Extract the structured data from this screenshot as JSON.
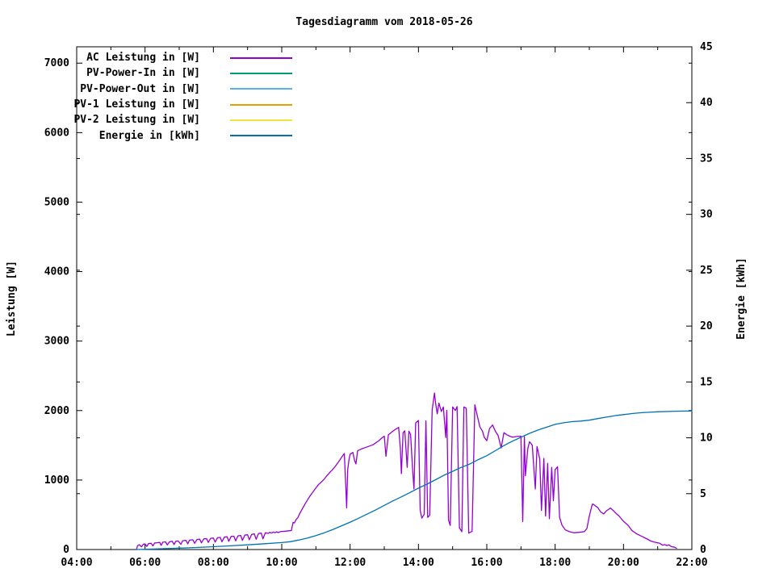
{
  "page": {
    "title": "Tagesdiagramm vom 2018-05-26"
  },
  "chart_data": {
    "type": "line",
    "title": "Tagesdiagramm vom 2018-05-26",
    "background_color": "#ffffff",
    "grid": false,
    "legend_position": "top-left-inside",
    "x_axis": {
      "unit": "time",
      "min_hour": 4,
      "max_hour": 22,
      "major_tick_hours": 2,
      "minor_tick_hours": 1,
      "tick_labels": [
        "04:00",
        "06:00",
        "08:00",
        "10:00",
        "12:00",
        "14:00",
        "16:00",
        "18:00",
        "20:00",
        "22:00"
      ]
    },
    "left_axis": {
      "label": "Leistung [W]",
      "min": 0,
      "max": 7235,
      "tick_step": 1000,
      "tick_labels": [
        "0",
        "1000",
        "2000",
        "3000",
        "4000",
        "5000",
        "6000",
        "7000"
      ]
    },
    "right_axis": {
      "label": "Energie [kWh]",
      "min": 0,
      "max": 45,
      "tick_step": 5,
      "tick_labels": [
        "0",
        "5",
        "10",
        "15",
        "20",
        "25",
        "30",
        "35",
        "40",
        "45"
      ]
    },
    "legend": [
      {
        "label": "AC Leistung in [W]",
        "color": "#9400D3"
      },
      {
        "label": "PV-Power-In in [W]",
        "color": "#009E73"
      },
      {
        "label": "PV-Power-Out in [W]",
        "color": "#56B4E9"
      },
      {
        "label": "PV-1 Leistung in [W]",
        "color": "#E69F00"
      },
      {
        "label": "PV-2 Leistung in [W]",
        "color": "#F0E442"
      },
      {
        "label": "Energie in [kWh]",
        "color": "#0072B2"
      }
    ],
    "series": [
      {
        "name": "AC Leistung in [W]",
        "color": "#9400D3",
        "axis": "left",
        "unit": "W",
        "points": [
          [
            5.75,
            0
          ],
          [
            5.78,
            55
          ],
          [
            5.83,
            70
          ],
          [
            5.9,
            40
          ],
          [
            5.95,
            78
          ],
          [
            6.0,
            80
          ],
          [
            6.05,
            45
          ],
          [
            6.1,
            85
          ],
          [
            6.18,
            90
          ],
          [
            6.23,
            52
          ],
          [
            6.28,
            94
          ],
          [
            6.35,
            97
          ],
          [
            6.43,
            102
          ],
          [
            6.47,
            60
          ],
          [
            6.52,
            106
          ],
          [
            6.6,
            110
          ],
          [
            6.65,
            66
          ],
          [
            6.72,
            113
          ],
          [
            6.8,
            117
          ],
          [
            6.85,
            72
          ],
          [
            6.9,
            120
          ],
          [
            6.97,
            123
          ],
          [
            7.05,
            76
          ],
          [
            7.1,
            127
          ],
          [
            7.2,
            131
          ],
          [
            7.25,
            83
          ],
          [
            7.3,
            135
          ],
          [
            7.4,
            140
          ],
          [
            7.45,
            90
          ],
          [
            7.52,
            144
          ],
          [
            7.6,
            149
          ],
          [
            7.65,
            96
          ],
          [
            7.72,
            153
          ],
          [
            7.8,
            157
          ],
          [
            7.85,
            102
          ],
          [
            7.92,
            161
          ],
          [
            8.0,
            165
          ],
          [
            8.05,
            107
          ],
          [
            8.12,
            169
          ],
          [
            8.2,
            174
          ],
          [
            8.25,
            112
          ],
          [
            8.32,
            178
          ],
          [
            8.4,
            183
          ],
          [
            8.45,
            119
          ],
          [
            8.52,
            188
          ],
          [
            8.6,
            192
          ],
          [
            8.65,
            126
          ],
          [
            8.72,
            197
          ],
          [
            8.8,
            202
          ],
          [
            8.85,
            132
          ],
          [
            8.92,
            207
          ],
          [
            9.0,
            212
          ],
          [
            9.05,
            140
          ],
          [
            9.12,
            217
          ],
          [
            9.2,
            224
          ],
          [
            9.25,
            147
          ],
          [
            9.32,
            230
          ],
          [
            9.4,
            236
          ],
          [
            9.45,
            154
          ],
          [
            9.52,
            242
          ],
          [
            9.6,
            232
          ],
          [
            9.65,
            247
          ],
          [
            9.7,
            237
          ],
          [
            9.75,
            251
          ],
          [
            9.8,
            241
          ],
          [
            9.85,
            254
          ],
          [
            9.9,
            244
          ],
          [
            9.95,
            257
          ],
          [
            10.0,
            260
          ],
          [
            10.1,
            264
          ],
          [
            10.2,
            269
          ],
          [
            10.28,
            273
          ],
          [
            10.33,
            390
          ],
          [
            10.37,
            382
          ],
          [
            10.42,
            432
          ],
          [
            10.47,
            457
          ],
          [
            10.53,
            522
          ],
          [
            10.58,
            567
          ],
          [
            10.67,
            647
          ],
          [
            10.75,
            712
          ],
          [
            10.83,
            772
          ],
          [
            10.92,
            832
          ],
          [
            11.0,
            887
          ],
          [
            11.08,
            937
          ],
          [
            11.17,
            977
          ],
          [
            11.25,
            1017
          ],
          [
            11.33,
            1067
          ],
          [
            11.42,
            1117
          ],
          [
            11.5,
            1157
          ],
          [
            11.58,
            1207
          ],
          [
            11.67,
            1267
          ],
          [
            11.75,
            1327
          ],
          [
            11.8,
            1362
          ],
          [
            11.83,
            1382
          ],
          [
            11.87,
            950
          ],
          [
            11.9,
            600
          ],
          [
            11.93,
            1150
          ],
          [
            11.97,
            1300
          ],
          [
            12.0,
            1372
          ],
          [
            12.08,
            1397
          ],
          [
            12.13,
            1282
          ],
          [
            12.17,
            1232
          ],
          [
            12.22,
            1422
          ],
          [
            12.33,
            1447
          ],
          [
            12.5,
            1477
          ],
          [
            12.67,
            1507
          ],
          [
            12.83,
            1562
          ],
          [
            12.92,
            1602
          ],
          [
            13.0,
            1632
          ],
          [
            13.05,
            1342
          ],
          [
            13.12,
            1652
          ],
          [
            13.25,
            1702
          ],
          [
            13.33,
            1732
          ],
          [
            13.42,
            1757
          ],
          [
            13.47,
            1462
          ],
          [
            13.5,
            1092
          ],
          [
            13.55,
            1682
          ],
          [
            13.6,
            1707
          ],
          [
            13.67,
            1182
          ],
          [
            13.72,
            1702
          ],
          [
            13.77,
            1657
          ],
          [
            13.83,
            1152
          ],
          [
            13.87,
            872
          ],
          [
            13.92,
            1822
          ],
          [
            14.0,
            1857
          ],
          [
            14.05,
            562
          ],
          [
            14.1,
            452
          ],
          [
            14.17,
            507
          ],
          [
            14.22,
            1852
          ],
          [
            14.27,
            462
          ],
          [
            14.33,
            492
          ],
          [
            14.4,
            2007
          ],
          [
            14.47,
            2252
          ],
          [
            14.5,
            2112
          ],
          [
            14.55,
            1952
          ],
          [
            14.6,
            2107
          ],
          [
            14.67,
            1987
          ],
          [
            14.73,
            2052
          ],
          [
            14.8,
            1612
          ],
          [
            14.83,
            2002
          ],
          [
            14.88,
            422
          ],
          [
            14.93,
            347
          ],
          [
            15.0,
            2052
          ],
          [
            15.08,
            2002
          ],
          [
            15.13,
            2057
          ],
          [
            15.2,
            312
          ],
          [
            15.27,
            257
          ],
          [
            15.33,
            2052
          ],
          [
            15.4,
            2032
          ],
          [
            15.47,
            237
          ],
          [
            15.57,
            262
          ],
          [
            15.65,
            2082
          ],
          [
            15.73,
            1907
          ],
          [
            15.8,
            1762
          ],
          [
            15.87,
            1707
          ],
          [
            15.93,
            1612
          ],
          [
            16.0,
            1567
          ],
          [
            16.08,
            1742
          ],
          [
            16.17,
            1792
          ],
          [
            16.25,
            1702
          ],
          [
            16.33,
            1642
          ],
          [
            16.42,
            1462
          ],
          [
            16.5,
            1682
          ],
          [
            16.58,
            1652
          ],
          [
            16.67,
            1632
          ],
          [
            16.75,
            1617
          ],
          [
            16.88,
            1627
          ],
          [
            17.0,
            1632
          ],
          [
            17.05,
            402
          ],
          [
            17.1,
            1622
          ],
          [
            17.13,
            1062
          ],
          [
            17.2,
            1452
          ],
          [
            17.25,
            1552
          ],
          [
            17.33,
            1502
          ],
          [
            17.42,
            872
          ],
          [
            17.47,
            1482
          ],
          [
            17.55,
            1302
          ],
          [
            17.6,
            562
          ],
          [
            17.67,
            1312
          ],
          [
            17.72,
            482
          ],
          [
            17.78,
            1242
          ],
          [
            17.83,
            442
          ],
          [
            17.9,
            1182
          ],
          [
            17.95,
            702
          ],
          [
            18.0,
            1152
          ],
          [
            18.07,
            1192
          ],
          [
            18.13,
            462
          ],
          [
            18.2,
            352
          ],
          [
            18.3,
            282
          ],
          [
            18.42,
            257
          ],
          [
            18.55,
            242
          ],
          [
            18.7,
            247
          ],
          [
            18.85,
            257
          ],
          [
            18.93,
            302
          ],
          [
            19.0,
            482
          ],
          [
            19.07,
            622
          ],
          [
            19.1,
            657
          ],
          [
            19.17,
            632
          ],
          [
            19.25,
            602
          ],
          [
            19.33,
            542
          ],
          [
            19.42,
            512
          ],
          [
            19.5,
            557
          ],
          [
            19.62,
            597
          ],
          [
            19.7,
            562
          ],
          [
            19.78,
            522
          ],
          [
            19.87,
            482
          ],
          [
            20.0,
            407
          ],
          [
            20.13,
            352
          ],
          [
            20.25,
            272
          ],
          [
            20.4,
            222
          ],
          [
            20.55,
            187
          ],
          [
            20.67,
            157
          ],
          [
            20.8,
            122
          ],
          [
            20.9,
            107
          ],
          [
            21.05,
            92
          ],
          [
            21.15,
            62
          ],
          [
            21.2,
            72
          ],
          [
            21.27,
            57
          ],
          [
            21.33,
            67
          ],
          [
            21.4,
            42
          ],
          [
            21.5,
            32
          ],
          [
            21.55,
            17
          ]
        ]
      },
      {
        "name": "PV-Power-In in [W]",
        "color": "#009E73",
        "axis": "left",
        "unit": "W",
        "points": []
      },
      {
        "name": "PV-Power-Out in [W]",
        "color": "#56B4E9",
        "axis": "left",
        "unit": "W",
        "points": []
      },
      {
        "name": "PV-1 Leistung in [W]",
        "color": "#E69F00",
        "axis": "left",
        "unit": "W",
        "points": []
      },
      {
        "name": "PV-2 Leistung in [W]",
        "color": "#F0E442",
        "axis": "left",
        "unit": "W",
        "points": []
      },
      {
        "name": "Energie in [kWh]",
        "color": "#0072B2",
        "axis": "right",
        "unit": "kWh",
        "points": [
          [
            5.75,
            0
          ],
          [
            6.0,
            0.02
          ],
          [
            6.5,
            0.07
          ],
          [
            7.0,
            0.12
          ],
          [
            7.5,
            0.18
          ],
          [
            8.0,
            0.25
          ],
          [
            8.5,
            0.33
          ],
          [
            9.0,
            0.42
          ],
          [
            9.5,
            0.52
          ],
          [
            10.0,
            0.62
          ],
          [
            10.25,
            0.7
          ],
          [
            10.5,
            0.85
          ],
          [
            10.75,
            1.03
          ],
          [
            11.0,
            1.25
          ],
          [
            11.25,
            1.5
          ],
          [
            11.5,
            1.8
          ],
          [
            11.75,
            2.12
          ],
          [
            12.0,
            2.45
          ],
          [
            12.25,
            2.8
          ],
          [
            12.5,
            3.17
          ],
          [
            12.75,
            3.55
          ],
          [
            13.0,
            3.95
          ],
          [
            13.25,
            4.35
          ],
          [
            13.5,
            4.72
          ],
          [
            13.75,
            5.1
          ],
          [
            14.0,
            5.5
          ],
          [
            14.25,
            5.85
          ],
          [
            14.5,
            6.25
          ],
          [
            14.75,
            6.65
          ],
          [
            15.0,
            7.0
          ],
          [
            15.25,
            7.35
          ],
          [
            15.5,
            7.65
          ],
          [
            15.75,
            8.05
          ],
          [
            16.0,
            8.4
          ],
          [
            16.25,
            8.85
          ],
          [
            16.5,
            9.3
          ],
          [
            16.75,
            9.7
          ],
          [
            17.0,
            10.05
          ],
          [
            17.25,
            10.4
          ],
          [
            17.5,
            10.7
          ],
          [
            17.75,
            10.95
          ],
          [
            18.0,
            11.2
          ],
          [
            18.25,
            11.35
          ],
          [
            18.5,
            11.45
          ],
          [
            18.75,
            11.5
          ],
          [
            19.0,
            11.58
          ],
          [
            19.25,
            11.72
          ],
          [
            19.5,
            11.85
          ],
          [
            19.75,
            11.98
          ],
          [
            20.0,
            12.08
          ],
          [
            20.25,
            12.17
          ],
          [
            20.5,
            12.24
          ],
          [
            20.75,
            12.29
          ],
          [
            21.0,
            12.33
          ],
          [
            21.5,
            12.38
          ],
          [
            22.0,
            12.4
          ]
        ]
      }
    ]
  }
}
